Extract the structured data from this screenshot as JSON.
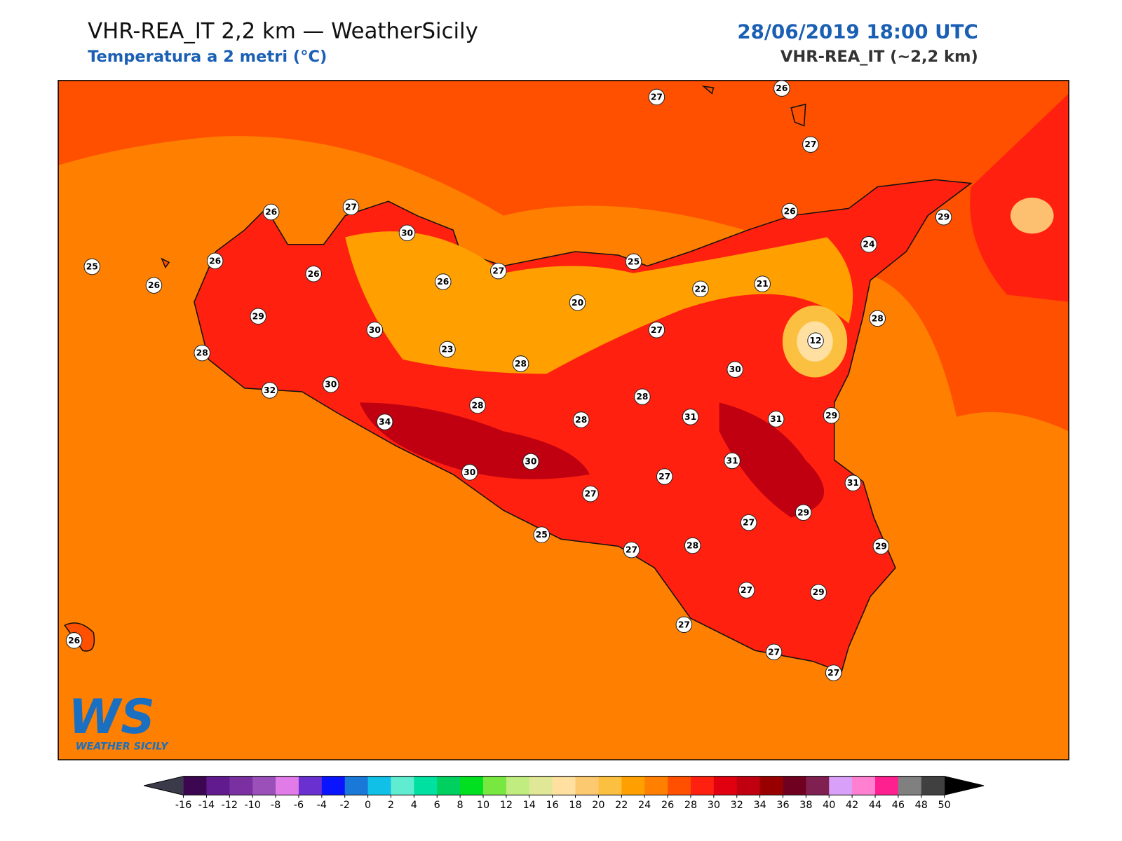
{
  "header": {
    "title": "VHR-REA_IT 2,2 km — WeatherSicily",
    "subtitle": "Temperatura a 2 metri (°C)",
    "datetime": "28/06/2019 18:00 UTC",
    "model": "VHR-REA_IT (~2,2 km)"
  },
  "stations": [
    27,
    26,
    27,
    26,
    27,
    30,
    26,
    29,
    25,
    26,
    26,
    26,
    26,
    27,
    25,
    24,
    22,
    21,
    20,
    29,
    30,
    27,
    28,
    12,
    28,
    23,
    28,
    30,
    32,
    30,
    28,
    28,
    28,
    31,
    31,
    29,
    34,
    31,
    30,
    30,
    27,
    31,
    27,
    29,
    27,
    25,
    28,
    27,
    29,
    27,
    29,
    27,
    27,
    27,
    26
  ],
  "colorbar": {
    "ticks": [
      -16,
      -14,
      -12,
      -10,
      -8,
      -6,
      -4,
      -2,
      0,
      2,
      4,
      6,
      8,
      10,
      12,
      14,
      16,
      18,
      20,
      22,
      24,
      26,
      28,
      30,
      32,
      34,
      36,
      38,
      40,
      42,
      44,
      46,
      48,
      50
    ],
    "colors": [
      "#3c0750",
      "#621a8f",
      "#7a30a0",
      "#9a50b8",
      "#e07be8",
      "#6a30d0",
      "#0a14ff",
      "#1a78d8",
      "#10c0e6",
      "#60ecd0",
      "#00e0a0",
      "#00d060",
      "#00e020",
      "#78e840",
      "#c0ec80",
      "#e0e898",
      "#ffe0a0",
      "#fcc870",
      "#fcc040",
      "#ffa000",
      "#ff8000",
      "#ff5000",
      "#ff2010",
      "#e00010",
      "#c00010",
      "#980000",
      "#700020",
      "#802050",
      "#d8a0f8",
      "#ff80d0",
      "#ff2090",
      "#808080",
      "#404040"
    ],
    "under_color": "#3a3a4a",
    "over_color": "#000000"
  },
  "logo": {
    "mark": "WS",
    "name": "WEATHER SICILY"
  }
}
